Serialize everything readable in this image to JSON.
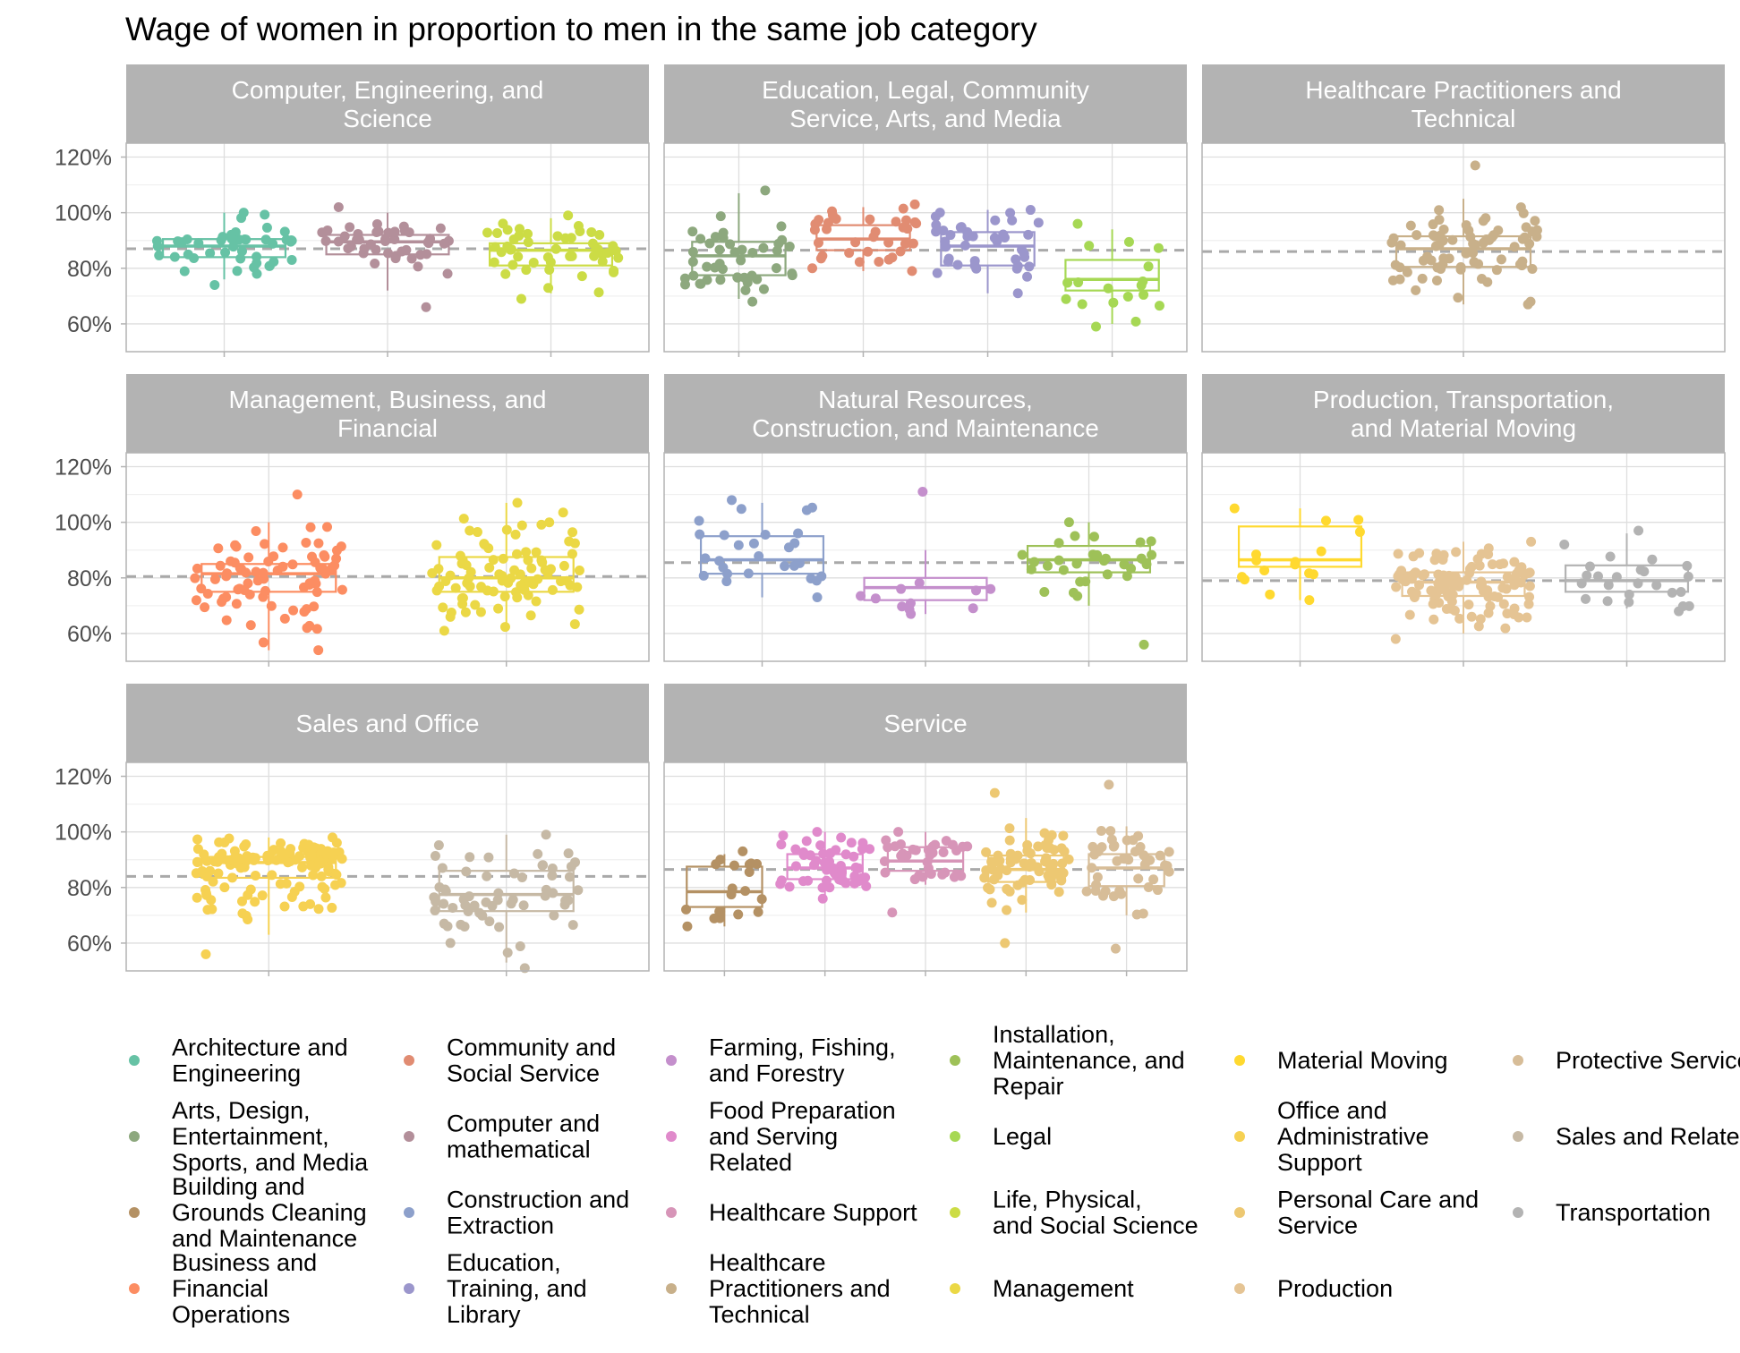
{
  "chart_data": {
    "type": "boxplot-jitter",
    "title": "Wage of women in proportion to men in the same job category",
    "ylim": [
      0.5,
      1.25
    ],
    "yticks": [
      "60%",
      "80%",
      "100%",
      "120%"
    ],
    "ytick_values": [
      0.6,
      0.8,
      1.0,
      1.2
    ],
    "grid": true,
    "legend_position": "bottom",
    "panels": [
      {
        "title": "Computer, Engineering, and Science",
        "title_lines": [
          "Computer, Engineering, and",
          "Science"
        ],
        "reference_line": 0.87,
        "boxes": [
          {
            "category": "Architecture and Engineering",
            "q1": 0.84,
            "median": 0.88,
            "q3": 0.905,
            "whisker_low": 0.76,
            "whisker_high": 1.0,
            "n": 45,
            "min": 0.74,
            "max": 1.0
          },
          {
            "category": "Computer and mathematical",
            "q1": 0.85,
            "median": 0.895,
            "q3": 0.92,
            "whisker_low": 0.72,
            "whisker_high": 1.0,
            "n": 45,
            "min": 0.66,
            "max": 1.02
          },
          {
            "category": "Life, Physical, and Social Science",
            "q1": 0.81,
            "median": 0.865,
            "q3": 0.89,
            "whisker_low": 0.71,
            "whisker_high": 0.98,
            "n": 50,
            "min": 0.69,
            "max": 0.99
          }
        ]
      },
      {
        "title": "Education, Legal, Community Service, Arts, and Media",
        "title_lines": [
          "Education, Legal, Community",
          "Service, Arts, and Media"
        ],
        "reference_line": 0.865,
        "boxes": [
          {
            "category": "Arts, Design, Entertainment, Sports, and Media",
            "q1": 0.775,
            "median": 0.845,
            "q3": 0.895,
            "whisker_low": 0.69,
            "whisker_high": 1.07,
            "n": 45,
            "min": 0.68,
            "max": 1.08
          },
          {
            "category": "Community and Social Service",
            "q1": 0.865,
            "median": 0.905,
            "q3": 0.955,
            "whisker_low": 0.79,
            "whisker_high": 1.02,
            "n": 35,
            "min": 0.79,
            "max": 1.03
          },
          {
            "category": "Education, Training, and Library",
            "q1": 0.81,
            "median": 0.88,
            "q3": 0.93,
            "whisker_low": 0.71,
            "whisker_high": 1.01,
            "n": 40,
            "min": 0.71,
            "max": 1.01
          },
          {
            "category": "Legal",
            "q1": 0.72,
            "median": 0.76,
            "q3": 0.83,
            "whisker_low": 0.6,
            "whisker_high": 0.94,
            "n": 18,
            "min": 0.59,
            "max": 0.96
          }
        ]
      },
      {
        "title": "Healthcare Practitioners and Technical",
        "title_lines": [
          "Healthcare Practitioners and",
          "Technical"
        ],
        "reference_line": 0.86,
        "boxes": [
          {
            "category": "Healthcare Practitioners and Technical",
            "q1": 0.805,
            "median": 0.87,
            "q3": 0.915,
            "whisker_low": 0.67,
            "whisker_high": 1.05,
            "n": 75,
            "min": 0.67,
            "max": 1.17
          }
        ]
      },
      {
        "title": "Management, Business, and Financial",
        "title_lines": [
          "Management, Business, and",
          "Financial"
        ],
        "reference_line": 0.805,
        "boxes": [
          {
            "category": "Business and Financial Operations",
            "q1": 0.75,
            "median": 0.815,
            "q3": 0.85,
            "whisker_low": 0.54,
            "whisker_high": 1.0,
            "n": 80,
            "min": 0.54,
            "max": 1.1
          },
          {
            "category": "Management",
            "q1": 0.75,
            "median": 0.8,
            "q3": 0.875,
            "whisker_low": 0.61,
            "whisker_high": 1.07,
            "n": 90,
            "min": 0.61,
            "max": 1.07
          }
        ]
      },
      {
        "title": "Natural Resources, Construction, and Maintenance",
        "title_lines": [
          "Natural Resources,",
          "Construction, and Maintenance"
        ],
        "reference_line": 0.855,
        "boxes": [
          {
            "category": "Construction and Extraction",
            "q1": 0.815,
            "median": 0.865,
            "q3": 0.95,
            "whisker_low": 0.73,
            "whisker_high": 1.07,
            "n": 28,
            "min": 0.73,
            "max": 1.08
          },
          {
            "category": "Farming, Fishing, and Forestry",
            "q1": 0.72,
            "median": 0.765,
            "q3": 0.8,
            "whisker_low": 0.67,
            "whisker_high": 0.9,
            "n": 12,
            "min": 0.67,
            "max": 1.11
          },
          {
            "category": "Installation, Maintenance, and Repair",
            "q1": 0.82,
            "median": 0.865,
            "q3": 0.915,
            "whisker_low": 0.7,
            "whisker_high": 1.0,
            "n": 30,
            "min": 0.56,
            "max": 1.0
          }
        ]
      },
      {
        "title": "Production, Transportation, and Material Moving",
        "title_lines": [
          "Production, Transportation,",
          "and Material Moving"
        ],
        "reference_line": 0.79,
        "boxes": [
          {
            "category": "Material Moving",
            "q1": 0.84,
            "median": 0.865,
            "q3": 0.985,
            "whisker_low": 0.72,
            "whisker_high": 1.05,
            "n": 16,
            "min": 0.72,
            "max": 1.05
          },
          {
            "category": "Production",
            "q1": 0.735,
            "median": 0.785,
            "q3": 0.82,
            "whisker_low": 0.6,
            "whisker_high": 0.93,
            "n": 110,
            "min": 0.58,
            "max": 0.93
          },
          {
            "category": "Transportation",
            "q1": 0.75,
            "median": 0.79,
            "q3": 0.845,
            "whisker_low": 0.69,
            "whisker_high": 0.96,
            "n": 25,
            "min": 0.68,
            "max": 0.97
          }
        ]
      },
      {
        "title": "Sales and Office",
        "title_lines": [
          "Sales and Office"
        ],
        "reference_line": 0.84,
        "boxes": [
          {
            "category": "Office and Administrative Support",
            "q1": 0.835,
            "median": 0.89,
            "q3": 0.91,
            "whisker_low": 0.63,
            "whisker_high": 0.98,
            "n": 130,
            "min": 0.56,
            "max": 0.98
          },
          {
            "category": "Sales and Related",
            "q1": 0.715,
            "median": 0.775,
            "q3": 0.86,
            "whisker_low": 0.53,
            "whisker_high": 0.99,
            "n": 60,
            "min": 0.51,
            "max": 0.99
          }
        ]
      },
      {
        "title": "Service",
        "title_lines": [
          "Service"
        ],
        "reference_line": 0.865,
        "boxes": [
          {
            "category": "Building and Grounds Cleaning and Maintenance",
            "q1": 0.73,
            "median": 0.785,
            "q3": 0.875,
            "whisker_low": 0.66,
            "whisker_high": 0.92,
            "n": 20,
            "min": 0.66,
            "max": 0.93
          },
          {
            "category": "Food Preparation and Serving Related",
            "q1": 0.83,
            "median": 0.87,
            "q3": 0.92,
            "whisker_low": 0.76,
            "whisker_high": 1.0,
            "n": 55,
            "min": 0.76,
            "max": 1.0
          },
          {
            "category": "Healthcare Support",
            "q1": 0.86,
            "median": 0.895,
            "q3": 0.945,
            "whisker_low": 0.81,
            "whisker_high": 1.0,
            "n": 35,
            "min": 0.71,
            "max": 1.0
          },
          {
            "category": "Personal Care and Service",
            "q1": 0.82,
            "median": 0.865,
            "q3": 0.915,
            "whisker_low": 0.71,
            "whisker_high": 1.05,
            "n": 70,
            "min": 0.6,
            "max": 1.14
          },
          {
            "category": "Protective Service",
            "q1": 0.805,
            "median": 0.87,
            "q3": 0.92,
            "whisker_low": 0.7,
            "whisker_high": 1.02,
            "n": 45,
            "min": 0.58,
            "max": 1.17
          }
        ]
      }
    ],
    "legend": [
      {
        "label": "Architecture and Engineering",
        "lines": [
          "Architecture and",
          "Engineering"
        ],
        "color": "#66c2a5"
      },
      {
        "label": "Arts, Design, Entertainment, Sports, and Media",
        "lines": [
          "Arts, Design,",
          "Entertainment,",
          "Sports, and Media"
        ],
        "color": "#8da87e"
      },
      {
        "label": "Building and Grounds Cleaning and Maintenance",
        "lines": [
          "Building and",
          "Grounds Cleaning",
          "and Maintenance"
        ],
        "color": "#b49164"
      },
      {
        "label": "Business and Financial Operations",
        "lines": [
          "Business and",
          "Financial",
          "Operations"
        ],
        "color": "#fc8d62"
      },
      {
        "label": "Community and Social Service",
        "lines": [
          "Community and",
          "Social Service"
        ],
        "color": "#e18c72"
      },
      {
        "label": "Computer and mathematical",
        "lines": [
          "Computer and",
          "mathematical"
        ],
        "color": "#b38f9a"
      },
      {
        "label": "Construction and Extraction",
        "lines": [
          "Construction and",
          "Extraction"
        ],
        "color": "#8da0cb"
      },
      {
        "label": "Education, Training, and Library",
        "lines": [
          "Education,",
          "Training, and",
          "Library"
        ],
        "color": "#9b96cc"
      },
      {
        "label": "Farming, Fishing, and Forestry",
        "lines": [
          "Farming, Fishing,",
          "and Forestry"
        ],
        "color": "#c48fcc"
      },
      {
        "label": "Food Preparation and Serving Related",
        "lines": [
          "Food Preparation",
          "and Serving",
          "Related"
        ],
        "color": "#e08acb"
      },
      {
        "label": "Healthcare Support",
        "lines": [
          "Healthcare Support"
        ],
        "color": "#d795b8"
      },
      {
        "label": "Healthcare Practitioners and Technical",
        "lines": [
          "Healthcare",
          "Practitioners and",
          "Technical"
        ],
        "color": "#c8b08a"
      },
      {
        "label": "Installation, Maintenance, and Repair",
        "lines": [
          "Installation,",
          "Maintenance, and",
          "Repair"
        ],
        "color": "#9ec158"
      },
      {
        "label": "Legal",
        "lines": [
          "Legal"
        ],
        "color": "#a6d854"
      },
      {
        "label": "Life, Physical, and Social Science",
        "lines": [
          "Life, Physical,",
          "and Social Science"
        ],
        "color": "#ccdc45"
      },
      {
        "label": "Management",
        "lines": [
          "Management"
        ],
        "color": "#ebd845"
      },
      {
        "label": "Material Moving",
        "lines": [
          "Material Moving"
        ],
        "color": "#ffd92f"
      },
      {
        "label": "Office and Administrative Support",
        "lines": [
          "Office and",
          "Administrative",
          "Support"
        ],
        "color": "#f6d152"
      },
      {
        "label": "Personal Care and Service",
        "lines": [
          "Personal Care and",
          "Service"
        ],
        "color": "#edc872"
      },
      {
        "label": "Production",
        "lines": [
          "Production"
        ],
        "color": "#e5c494"
      },
      {
        "label": "Protective Service",
        "lines": [
          "Protective Service"
        ],
        "color": "#d7bd98"
      },
      {
        "label": "Sales and Related",
        "lines": [
          "Sales and Related"
        ],
        "color": "#c6b9a5"
      },
      {
        "label": "Transportation",
        "lines": [
          "Transportation"
        ],
        "color": "#b3b3b3"
      }
    ],
    "colors": {
      "strip": "#b3b3b3",
      "strip_text": "#ffffff",
      "grid_major": "#dedede",
      "grid_minor": "#efefef",
      "panel_border": "#b3b3b3",
      "reference_line": "#a9a9a9",
      "axis_text": "#4d4d4d",
      "title": "#000000"
    }
  }
}
